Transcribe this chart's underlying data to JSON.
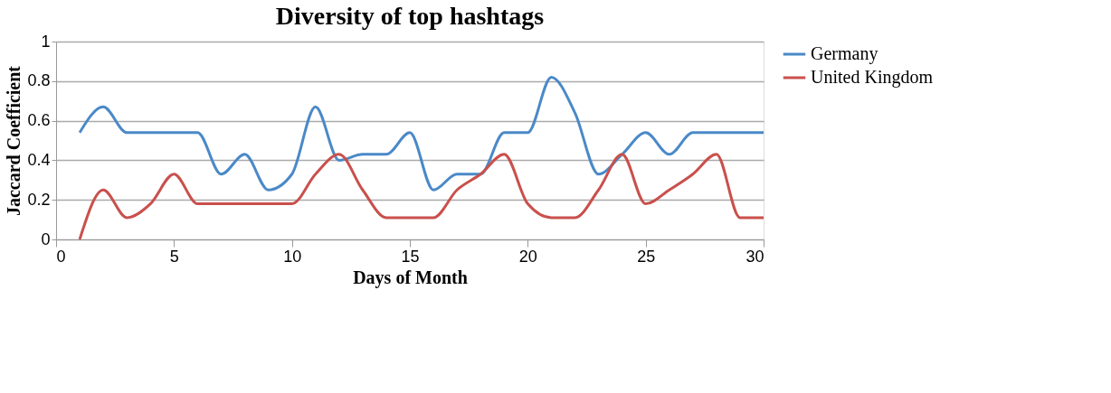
{
  "chart_data": {
    "type": "line",
    "title": "Diversity of top hashtags",
    "xlabel": "Days of Month",
    "ylabel": "Jaccard Coefficient",
    "x": [
      1,
      2,
      3,
      4,
      5,
      6,
      7,
      8,
      9,
      10,
      11,
      12,
      13,
      14,
      15,
      16,
      17,
      18,
      19,
      20,
      21,
      22,
      23,
      24,
      25,
      26,
      27,
      28,
      29,
      30
    ],
    "series": [
      {
        "name": "Germany",
        "color": "#4a89c8",
        "values": [
          0.54,
          0.67,
          0.54,
          0.54,
          0.54,
          0.54,
          0.33,
          0.43,
          0.25,
          0.33,
          0.67,
          0.4,
          0.43,
          0.43,
          0.54,
          0.25,
          0.33,
          0.33,
          0.54,
          0.54,
          0.82,
          0.64,
          0.33,
          0.43,
          0.54,
          0.43,
          0.54,
          0.54,
          0.54,
          0.54
        ]
      },
      {
        "name": "United Kingdom",
        "color": "#c9504c",
        "values": [
          0,
          0.25,
          0.11,
          0.18,
          0.33,
          0.18,
          0.18,
          0.18,
          0.18,
          0.18,
          0.33,
          0.43,
          0.25,
          0.11,
          0.11,
          0.11,
          0.25,
          0.33,
          0.43,
          0.18,
          0.11,
          0.11,
          0.25,
          0.43,
          0.18,
          0.25,
          0.33,
          0.43,
          0.11,
          0.11
        ]
      }
    ],
    "xlim": [
      0,
      30
    ],
    "xticks": [
      0,
      5,
      10,
      15,
      20,
      25,
      30
    ],
    "ylim": [
      0,
      1
    ],
    "yticks": [
      0,
      0.2,
      0.4,
      0.6,
      0.8,
      1
    ],
    "grid": "y",
    "legend": "right",
    "line_style": "solid",
    "marker": "none"
  }
}
